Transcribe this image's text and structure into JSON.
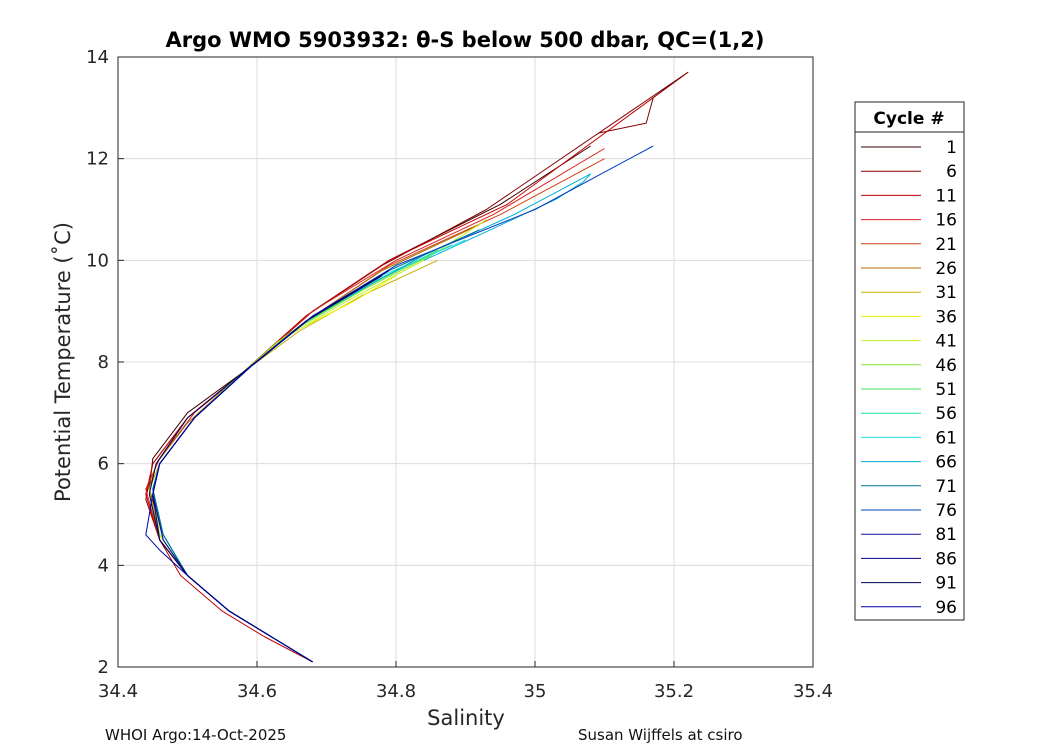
{
  "footer": {
    "left": "WHOI Argo:14-Oct-2025",
    "right": "Susan Wijffels at csiro"
  },
  "chart_data": {
    "type": "line",
    "title": "Argo WMO 5903932: θ-S below 500 dbar,  QC=(1,2)",
    "xlabel": "Salinity",
    "ylabel": "Potential Temperature (˚C)",
    "xlim": [
      34.4,
      35.4
    ],
    "ylim": [
      2,
      14
    ],
    "xticks": [
      34.4,
      34.6,
      34.8,
      35,
      35.2,
      35.4
    ],
    "yticks": [
      2,
      4,
      6,
      8,
      10,
      12,
      14
    ],
    "grid": true,
    "legend": {
      "title": "Cycle #",
      "placement": "outside-right",
      "entries": [
        {
          "name": "1",
          "color": "#3a0000"
        },
        {
          "name": "6",
          "color": "#800000"
        },
        {
          "name": "11",
          "color": "#c00000"
        },
        {
          "name": "16",
          "color": "#e02020"
        },
        {
          "name": "21",
          "color": "#d04010"
        },
        {
          "name": "26",
          "color": "#b07000"
        },
        {
          "name": "31",
          "color": "#c0b000"
        },
        {
          "name": "36",
          "color": "#f0f000"
        },
        {
          "name": "41",
          "color": "#c0f020"
        },
        {
          "name": "46",
          "color": "#80e040"
        },
        {
          "name": "51",
          "color": "#40e060"
        },
        {
          "name": "56",
          "color": "#20e0a0"
        },
        {
          "name": "61",
          "color": "#20e0e0"
        },
        {
          "name": "66",
          "color": "#00b0d0"
        },
        {
          "name": "71",
          "color": "#007090"
        },
        {
          "name": "76",
          "color": "#0040c0"
        },
        {
          "name": "81",
          "color": "#1010a0"
        },
        {
          "name": "86",
          "color": "#000080"
        },
        {
          "name": "91",
          "color": "#000050"
        },
        {
          "name": "96",
          "color": "#0000a0"
        }
      ]
    },
    "series": [
      {
        "cycle": "1",
        "color": "#3a0000",
        "points": [
          [
            34.68,
            2.1
          ],
          [
            34.62,
            2.6
          ],
          [
            34.56,
            3.1
          ],
          [
            34.5,
            3.8
          ],
          [
            34.465,
            4.6
          ],
          [
            34.445,
            5.5
          ],
          [
            34.45,
            6.1
          ],
          [
            34.5,
            7.0
          ],
          [
            34.59,
            7.9
          ],
          [
            34.68,
            9.0
          ],
          [
            34.79,
            10.0
          ],
          [
            34.95,
            11.1
          ],
          [
            35.08,
            12.25
          ]
        ]
      },
      {
        "cycle": "6",
        "color": "#800000",
        "points": [
          [
            34.68,
            2.1
          ],
          [
            34.62,
            2.6
          ],
          [
            34.56,
            3.1
          ],
          [
            34.5,
            3.8
          ],
          [
            34.46,
            4.5
          ],
          [
            34.44,
            5.3
          ],
          [
            34.45,
            6.0
          ],
          [
            34.5,
            6.9
          ],
          [
            34.58,
            7.8
          ],
          [
            34.67,
            8.9
          ],
          [
            34.78,
            9.9
          ],
          [
            34.93,
            11.0
          ],
          [
            35.22,
            13.7
          ],
          [
            35.17,
            13.2
          ],
          [
            35.16,
            12.7
          ],
          [
            35.09,
            12.5
          ]
        ]
      },
      {
        "cycle": "11",
        "color": "#c00000",
        "points": [
          [
            34.68,
            2.1
          ],
          [
            34.61,
            2.6
          ],
          [
            34.55,
            3.1
          ],
          [
            34.49,
            3.8
          ],
          [
            34.46,
            4.5
          ],
          [
            34.44,
            5.4
          ],
          [
            34.45,
            6.0
          ],
          [
            34.5,
            6.9
          ],
          [
            34.58,
            7.8
          ],
          [
            34.67,
            8.9
          ],
          [
            34.79,
            10.0
          ],
          [
            34.96,
            11.1
          ],
          [
            35.17,
            13.2
          ]
        ]
      },
      {
        "cycle": "16",
        "color": "#e02020",
        "points": [
          [
            34.68,
            2.1
          ],
          [
            34.62,
            2.6
          ],
          [
            34.56,
            3.1
          ],
          [
            34.5,
            3.8
          ],
          [
            34.46,
            4.5
          ],
          [
            34.44,
            5.5
          ],
          [
            34.46,
            6.1
          ],
          [
            34.51,
            7.0
          ],
          [
            34.59,
            7.9
          ],
          [
            34.68,
            9.0
          ],
          [
            34.8,
            10.0
          ],
          [
            34.94,
            10.9
          ],
          [
            35.1,
            12.2
          ]
        ]
      },
      {
        "cycle": "21",
        "color": "#d04010",
        "points": [
          [
            34.68,
            2.1
          ],
          [
            34.62,
            2.6
          ],
          [
            34.56,
            3.1
          ],
          [
            34.5,
            3.8
          ],
          [
            34.46,
            4.6
          ],
          [
            34.445,
            5.5
          ],
          [
            34.455,
            6.0
          ],
          [
            34.5,
            6.9
          ],
          [
            34.58,
            7.8
          ],
          [
            34.67,
            8.8
          ],
          [
            34.79,
            9.9
          ],
          [
            34.95,
            10.9
          ],
          [
            35.1,
            12.0
          ]
        ]
      },
      {
        "cycle": "26",
        "color": "#b07000",
        "points": [
          [
            34.68,
            2.1
          ],
          [
            34.62,
            2.6
          ],
          [
            34.56,
            3.1
          ],
          [
            34.5,
            3.8
          ],
          [
            34.46,
            4.6
          ],
          [
            34.445,
            5.5
          ],
          [
            34.455,
            6.0
          ],
          [
            34.5,
            6.8
          ],
          [
            34.58,
            7.8
          ],
          [
            34.67,
            8.8
          ],
          [
            34.78,
            9.8
          ],
          [
            34.92,
            10.7
          ]
        ]
      },
      {
        "cycle": "31",
        "color": "#c0b000",
        "points": [
          [
            34.68,
            2.1
          ],
          [
            34.62,
            2.6
          ],
          [
            34.56,
            3.1
          ],
          [
            34.5,
            3.8
          ],
          [
            34.46,
            4.6
          ],
          [
            34.445,
            5.5
          ],
          [
            34.46,
            6.0
          ],
          [
            34.51,
            6.9
          ],
          [
            34.58,
            7.8
          ],
          [
            34.66,
            8.6
          ],
          [
            34.75,
            9.3
          ],
          [
            34.86,
            10.0
          ]
        ]
      },
      {
        "cycle": "36",
        "color": "#f0f000",
        "points": [
          [
            34.68,
            2.1
          ],
          [
            34.62,
            2.6
          ],
          [
            34.56,
            3.1
          ],
          [
            34.5,
            3.8
          ],
          [
            34.46,
            4.6
          ],
          [
            34.45,
            5.5
          ],
          [
            34.46,
            6.0
          ],
          [
            34.51,
            6.9
          ],
          [
            34.58,
            7.8
          ],
          [
            34.64,
            8.5
          ],
          [
            34.74,
            9.2
          ],
          [
            34.8,
            9.7
          ]
        ]
      },
      {
        "cycle": "41",
        "color": "#c0f020",
        "points": [
          [
            34.68,
            2.1
          ],
          [
            34.62,
            2.6
          ],
          [
            34.56,
            3.1
          ],
          [
            34.5,
            3.8
          ],
          [
            34.46,
            4.6
          ],
          [
            34.45,
            5.5
          ],
          [
            34.46,
            6.0
          ],
          [
            34.51,
            6.9
          ],
          [
            34.58,
            7.8
          ],
          [
            34.63,
            8.4
          ],
          [
            34.73,
            9.2
          ],
          [
            34.84,
            10.0
          ],
          [
            34.93,
            10.8
          ]
        ]
      },
      {
        "cycle": "46",
        "color": "#80e040",
        "points": [
          [
            34.68,
            2.1
          ],
          [
            34.62,
            2.6
          ],
          [
            34.56,
            3.1
          ],
          [
            34.5,
            3.8
          ],
          [
            34.465,
            4.6
          ],
          [
            34.45,
            5.5
          ],
          [
            34.46,
            6.0
          ],
          [
            34.51,
            6.9
          ],
          [
            34.58,
            7.8
          ],
          [
            34.65,
            8.6
          ],
          [
            34.75,
            9.4
          ],
          [
            34.85,
            10.1
          ]
        ]
      },
      {
        "cycle": "51",
        "color": "#40e060",
        "points": [
          [
            34.68,
            2.1
          ],
          [
            34.62,
            2.6
          ],
          [
            34.56,
            3.1
          ],
          [
            34.5,
            3.8
          ],
          [
            34.465,
            4.6
          ],
          [
            34.45,
            5.5
          ],
          [
            34.46,
            6.0
          ],
          [
            34.51,
            6.9
          ],
          [
            34.58,
            7.8
          ],
          [
            34.66,
            8.7
          ],
          [
            34.76,
            9.5
          ],
          [
            34.86,
            10.2
          ]
        ]
      },
      {
        "cycle": "56",
        "color": "#20e0a0",
        "points": [
          [
            34.68,
            2.1
          ],
          [
            34.62,
            2.6
          ],
          [
            34.56,
            3.1
          ],
          [
            34.5,
            3.8
          ],
          [
            34.465,
            4.6
          ],
          [
            34.45,
            5.5
          ],
          [
            34.46,
            6.0
          ],
          [
            34.51,
            6.9
          ],
          [
            34.59,
            7.9
          ],
          [
            34.67,
            8.8
          ],
          [
            34.77,
            9.6
          ],
          [
            34.88,
            10.3
          ]
        ]
      },
      {
        "cycle": "61",
        "color": "#20e0e0",
        "points": [
          [
            34.68,
            2.1
          ],
          [
            34.62,
            2.6
          ],
          [
            34.56,
            3.1
          ],
          [
            34.5,
            3.8
          ],
          [
            34.465,
            4.6
          ],
          [
            34.45,
            5.5
          ],
          [
            34.46,
            6.0
          ],
          [
            34.51,
            6.9
          ],
          [
            34.59,
            7.9
          ],
          [
            34.67,
            8.8
          ],
          [
            34.78,
            9.7
          ],
          [
            34.9,
            10.4
          ]
        ]
      },
      {
        "cycle": "66",
        "color": "#00b0d0",
        "points": [
          [
            34.68,
            2.1
          ],
          [
            34.62,
            2.6
          ],
          [
            34.56,
            3.1
          ],
          [
            34.5,
            3.8
          ],
          [
            34.465,
            4.6
          ],
          [
            34.45,
            5.5
          ],
          [
            34.46,
            6.0
          ],
          [
            34.51,
            6.9
          ],
          [
            34.59,
            7.9
          ],
          [
            34.68,
            8.9
          ],
          [
            34.8,
            9.8
          ],
          [
            34.84,
            10.1
          ],
          [
            34.97,
            10.9
          ],
          [
            35.08,
            11.7
          ],
          [
            35.07,
            11.55
          ],
          [
            35.03,
            11.2
          ],
          [
            34.92,
            10.5
          ],
          [
            34.84,
            10.0
          ]
        ]
      },
      {
        "cycle": "71",
        "color": "#007090",
        "points": [
          [
            34.68,
            2.1
          ],
          [
            34.62,
            2.6
          ],
          [
            34.56,
            3.1
          ],
          [
            34.5,
            3.8
          ],
          [
            34.465,
            4.6
          ],
          [
            34.45,
            5.5
          ],
          [
            34.46,
            6.0
          ],
          [
            34.51,
            6.9
          ],
          [
            34.59,
            7.9
          ],
          [
            34.68,
            8.9
          ],
          [
            34.79,
            9.8
          ],
          [
            34.92,
            10.6
          ]
        ]
      },
      {
        "cycle": "76",
        "color": "#0040c0",
        "points": [
          [
            34.68,
            2.1
          ],
          [
            34.62,
            2.6
          ],
          [
            34.56,
            3.1
          ],
          [
            34.5,
            3.8
          ],
          [
            34.465,
            4.5
          ],
          [
            34.45,
            5.4
          ],
          [
            34.46,
            6.0
          ],
          [
            34.51,
            6.9
          ],
          [
            34.59,
            7.9
          ],
          [
            34.68,
            8.9
          ],
          [
            34.8,
            9.9
          ],
          [
            35.0,
            11.0
          ],
          [
            35.17,
            12.25
          ]
        ]
      },
      {
        "cycle": "81",
        "color": "#1010a0",
        "points": [
          [
            34.68,
            2.1
          ],
          [
            34.62,
            2.6
          ],
          [
            34.56,
            3.1
          ],
          [
            34.5,
            3.8
          ],
          [
            34.465,
            4.5
          ],
          [
            34.45,
            5.4
          ],
          [
            34.46,
            6.0
          ],
          [
            34.51,
            6.9
          ],
          [
            34.59,
            7.9
          ],
          [
            34.68,
            8.9
          ],
          [
            34.79,
            9.8
          ]
        ]
      },
      {
        "cycle": "86",
        "color": "#000080",
        "points": [
          [
            34.68,
            2.1
          ],
          [
            34.62,
            2.6
          ],
          [
            34.56,
            3.1
          ],
          [
            34.5,
            3.8
          ],
          [
            34.46,
            4.5
          ],
          [
            34.45,
            5.4
          ],
          [
            34.46,
            6.0
          ],
          [
            34.51,
            6.9
          ],
          [
            34.59,
            7.9
          ],
          [
            34.68,
            8.9
          ],
          [
            34.79,
            9.8
          ]
        ]
      },
      {
        "cycle": "91",
        "color": "#000050",
        "points": [
          [
            34.68,
            2.1
          ],
          [
            34.62,
            2.6
          ],
          [
            34.56,
            3.1
          ],
          [
            34.5,
            3.8
          ],
          [
            34.46,
            4.5
          ],
          [
            34.445,
            5.4
          ],
          [
            34.455,
            6.0
          ],
          [
            34.5,
            6.9
          ],
          [
            34.58,
            7.8
          ],
          [
            34.67,
            8.8
          ],
          [
            34.78,
            9.7
          ]
        ]
      },
      {
        "cycle": "96",
        "color": "#0000a0",
        "points": [
          [
            34.68,
            2.1
          ],
          [
            34.62,
            2.6
          ],
          [
            34.56,
            3.1
          ],
          [
            34.5,
            3.8
          ],
          [
            34.46,
            4.3
          ],
          [
            34.44,
            4.6
          ],
          [
            34.45,
            5.4
          ],
          [
            34.46,
            6.0
          ],
          [
            34.51,
            6.9
          ],
          [
            34.59,
            7.9
          ],
          [
            34.68,
            8.9
          ],
          [
            34.79,
            9.8
          ]
        ]
      }
    ]
  }
}
